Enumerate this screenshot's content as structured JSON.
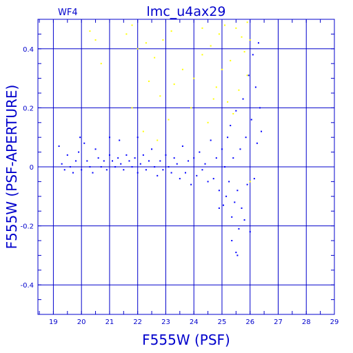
{
  "chart_data": {
    "type": "scatter",
    "title": "lmc_u4ax29",
    "subtitle": "WF4",
    "xlabel": "F555W (PSF)",
    "ylabel": "F555W (PSF-APERTURE)",
    "xlim": [
      18.45,
      29.0
    ],
    "ylim": [
      -0.5,
      0.5
    ],
    "x_ticks": [
      19,
      20,
      21,
      22,
      23,
      24,
      25,
      26,
      27,
      28,
      29
    ],
    "x_tick_labels": [
      "19",
      "20",
      "21",
      "22",
      "23",
      "24",
      "25",
      "26",
      "27",
      "28",
      "29"
    ],
    "y_ticks": [
      -0.4,
      -0.2,
      0,
      0.2,
      0.4
    ],
    "y_tick_labels": [
      "-0.4",
      "-0.2",
      "0",
      "0.2",
      "0.4"
    ],
    "grid": true,
    "colors": {
      "axes": "#0000cc",
      "grid": "#0000cc"
    },
    "series": [
      {
        "color": "#0000ff",
        "points": [
          [
            19.2,
            0.07
          ],
          [
            19.3,
            0.01
          ],
          [
            19.4,
            -0.01
          ],
          [
            19.5,
            0.04
          ],
          [
            19.6,
            0.0
          ],
          [
            19.7,
            -0.02
          ],
          [
            19.8,
            0.02
          ],
          [
            19.9,
            0.05
          ],
          [
            19.95,
            0.1
          ],
          [
            20.0,
            -0.01
          ],
          [
            20.1,
            0.08
          ],
          [
            20.2,
            0.02
          ],
          [
            20.3,
            0.0
          ],
          [
            20.4,
            -0.02
          ],
          [
            20.5,
            0.06
          ],
          [
            20.6,
            0.03
          ],
          [
            20.7,
            0.0
          ],
          [
            20.8,
            0.02
          ],
          [
            20.9,
            -0.01
          ],
          [
            21.0,
            0.04
          ],
          [
            21.0,
            0.1
          ],
          [
            21.1,
            0.02
          ],
          [
            21.2,
            0.0
          ],
          [
            21.3,
            0.03
          ],
          [
            21.35,
            0.09
          ],
          [
            21.4,
            0.01
          ],
          [
            21.5,
            -0.01
          ],
          [
            21.6,
            0.04
          ],
          [
            21.7,
            0.02
          ],
          [
            21.8,
            0.0
          ],
          [
            21.9,
            0.03
          ],
          [
            22.0,
            -0.02
          ],
          [
            22.0,
            0.1
          ],
          [
            22.1,
            0.01
          ],
          [
            22.2,
            0.04
          ],
          [
            22.3,
            -0.01
          ],
          [
            22.4,
            0.02
          ],
          [
            22.5,
            0.06
          ],
          [
            22.6,
            0.0
          ],
          [
            22.7,
            -0.03
          ],
          [
            22.8,
            0.02
          ],
          [
            22.9,
            -0.01
          ],
          [
            23.0,
            0.04
          ],
          [
            23.1,
            0.0
          ],
          [
            23.2,
            -0.02
          ],
          [
            23.3,
            0.03
          ],
          [
            23.4,
            0.01
          ],
          [
            23.5,
            -0.04
          ],
          [
            23.6,
            0.07
          ],
          [
            23.7,
            -0.02
          ],
          [
            23.8,
            0.02
          ],
          [
            23.9,
            -0.06
          ],
          [
            24.0,
            0.03
          ],
          [
            24.1,
            -0.03
          ],
          [
            24.2,
            0.05
          ],
          [
            24.3,
            -0.01
          ],
          [
            24.4,
            0.01
          ],
          [
            24.5,
            -0.05
          ],
          [
            24.6,
            0.09
          ],
          [
            24.7,
            -0.04
          ],
          [
            24.8,
            0.03
          ],
          [
            24.9,
            -0.08
          ],
          [
            25.0,
            0.06
          ],
          [
            25.05,
            -0.13
          ],
          [
            25.1,
            0.0
          ],
          [
            25.15,
            -0.1
          ],
          [
            25.2,
            0.1
          ],
          [
            25.25,
            -0.05
          ],
          [
            25.3,
            0.14
          ],
          [
            25.35,
            -0.17
          ],
          [
            25.4,
            0.03
          ],
          [
            25.45,
            -0.12
          ],
          [
            25.5,
            0.19
          ],
          [
            25.55,
            -0.08
          ],
          [
            25.6,
            -0.21
          ],
          [
            25.65,
            0.06
          ],
          [
            25.7,
            -0.14
          ],
          [
            25.75,
            0.23
          ],
          [
            25.8,
            -0.18
          ],
          [
            25.85,
            0.1
          ],
          [
            25.9,
            -0.06
          ],
          [
            25.95,
            0.31
          ],
          [
            26.0,
            -0.22
          ],
          [
            26.05,
            0.16
          ],
          [
            26.1,
            0.38
          ],
          [
            26.15,
            -0.04
          ],
          [
            26.2,
            0.27
          ],
          [
            26.25,
            0.08
          ],
          [
            26.3,
            0.42
          ],
          [
            26.35,
            0.2
          ],
          [
            26.4,
            0.12
          ],
          [
            25.5,
            -0.29
          ],
          [
            25.55,
            -0.3
          ],
          [
            25.35,
            -0.25
          ],
          [
            24.9,
            -0.14
          ]
        ]
      },
      {
        "color": "#ffff00",
        "points": [
          [
            20.3,
            0.46
          ],
          [
            20.5,
            0.43
          ],
          [
            20.7,
            0.35
          ],
          [
            21.6,
            0.45
          ],
          [
            21.8,
            0.48
          ],
          [
            22.0,
            0.4
          ],
          [
            22.3,
            0.42
          ],
          [
            22.6,
            0.37
          ],
          [
            22.9,
            0.43
          ],
          [
            23.2,
            0.46
          ],
          [
            21.8,
            0.2
          ],
          [
            22.4,
            0.29
          ],
          [
            22.8,
            0.24
          ],
          [
            23.3,
            0.28
          ],
          [
            23.6,
            0.33
          ],
          [
            24.0,
            0.3
          ],
          [
            24.3,
            0.38
          ],
          [
            24.6,
            0.41
          ],
          [
            24.9,
            0.45
          ],
          [
            25.1,
            0.48
          ],
          [
            25.3,
            0.36
          ],
          [
            25.5,
            0.47
          ],
          [
            25.6,
            0.26
          ],
          [
            25.7,
            0.44
          ],
          [
            25.8,
            0.39
          ],
          [
            25.9,
            0.49
          ],
          [
            26.0,
            0.43
          ],
          [
            23.1,
            0.16
          ],
          [
            23.9,
            0.2
          ],
          [
            24.5,
            0.15
          ],
          [
            24.7,
            0.23
          ],
          [
            25.2,
            0.22
          ],
          [
            25.4,
            0.18
          ],
          [
            25.9,
            0.31
          ],
          [
            26.0,
            -0.05
          ],
          [
            24.3,
            0.47
          ],
          [
            24.8,
            0.27
          ],
          [
            25.0,
            0.33
          ],
          [
            22.2,
            0.12
          ],
          [
            22.7,
            0.09
          ]
        ]
      }
    ]
  }
}
